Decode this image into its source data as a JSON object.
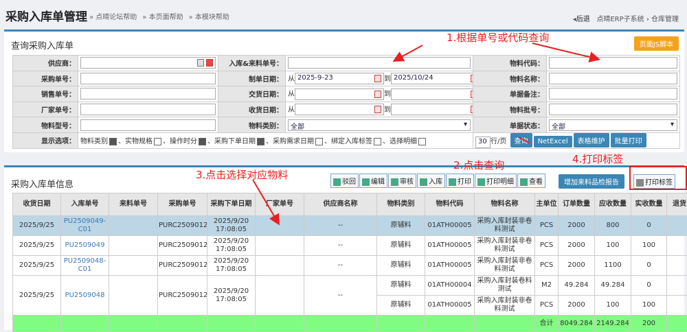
{
  "header": {
    "title": "采购入库单管理",
    "crumbs": [
      "» 点晴论坛帮助",
      "» 本页面帮助",
      "» 本模块帮助"
    ],
    "back": "后退",
    "system": "点晴ERP子系统",
    "sep": "›",
    "module": "仓库管理"
  },
  "query": {
    "title": "查询采购入库单",
    "js_button": "页面JS脚本",
    "labels": {
      "supplier": "供应商：",
      "in_no": "入库&来料单号：",
      "mat_code": "物料代码：",
      "po_no": "采购单号：",
      "make_date": "制单日期：",
      "mat_name": "物料名称：",
      "so_no": "销售单号：",
      "deliver_date": "交货日期：",
      "remark": "单据备注：",
      "vendor_no": "厂家单号：",
      "recv_date": "收货日期：",
      "batch": "物料批号：",
      "model": "物料型号：",
      "category": "物料类别：",
      "status": "单据状态：",
      "display": "显示选项："
    },
    "from": "从",
    "to": "到",
    "make_from": "2025-9-23",
    "make_to": "2025/10/24",
    "category_value": "全部",
    "status_value": "全部",
    "options": [
      {
        "label": "物料类别",
        "checked": true
      },
      {
        "label": "实物规格",
        "checked": false
      },
      {
        "label": "操作时分",
        "checked": true
      },
      {
        "label": "采购下单日期",
        "checked": true
      },
      {
        "label": "采购需求日期",
        "checked": false
      },
      {
        "label": "绑定入库标签",
        "checked": false
      },
      {
        "label": "选择明细",
        "checked": false
      }
    ],
    "rows_per_page": "30",
    "rows_unit": "行/页",
    "buttons": [
      "查询",
      "NetExcel",
      "表格维护",
      "批量打印"
    ]
  },
  "list": {
    "title": "采购入库单信息",
    "toolbar": [
      "驳回",
      "编辑",
      "审核",
      "入库",
      "打印",
      "打印明细",
      "查看"
    ],
    "quality_button": "增加来料品检报告",
    "print_label": "打印标签",
    "columns": [
      "收货日期",
      "入库单号",
      "来料单号",
      "采购单号",
      "采购下单日期",
      "厂家单号",
      "供应商名称",
      "物料类别",
      "物料代码",
      "物料名称",
      "主单位",
      "订单数量",
      "应收数量",
      "实收数量",
      "退货"
    ],
    "rows": [
      {
        "date": "2025/9/25",
        "in_no": "PU2509049-C01",
        "po": "PURC2509012",
        "po_date": "2025/9/20 17:08:05",
        "supplier": "--",
        "cat": "原辅料",
        "code": "01ATH00005",
        "name": "采购入库封装非卷料测试",
        "unit": "PCS",
        "order": "2000",
        "due": "800",
        "recv": "0",
        "selected": true
      },
      {
        "date": "2025/9/25",
        "in_no": "PU2509049",
        "po": "PURC2509012",
        "po_date": "2025/9/20 17:08:05",
        "supplier": "--",
        "cat": "原辅料",
        "code": "01ATH00005",
        "name": "采购入库封装非卷料测试",
        "unit": "PCS",
        "order": "2000",
        "due": "100",
        "recv": "100"
      },
      {
        "date": "2025/9/25",
        "in_no": "PU2509048-C01",
        "po": "PURC2509012",
        "po_date": "2025/9/20 17:08:05",
        "supplier": "--",
        "cat": "原辅料",
        "code": "01ATH00005",
        "name": "采购入库封装非卷料测试",
        "unit": "PCS",
        "order": "2000",
        "due": "1100",
        "recv": "0"
      },
      {
        "date": "2025/9/25",
        "in_no": "PU2509048",
        "po": "PURC2509012",
        "po_date": "2025/9/20 17:08:05",
        "supplier": "--",
        "cat": "原辅料",
        "code": "01ATH00004",
        "name": "采购入库封装卷料测试",
        "unit": "M2",
        "order": "49.284",
        "due": "49.284",
        "recv": "0"
      },
      {
        "cat": "原辅料",
        "code": "01ATH00005",
        "name": "采购入库封装非卷料测试",
        "unit": "PCS",
        "order": "2000",
        "due": "100",
        "recv": "100"
      }
    ],
    "total": {
      "label": "合计",
      "order": "8049.284",
      "due": "2149.284",
      "recv": "200"
    }
  },
  "annotations": [
    "1.根据单号或代码查询",
    "2.点击查询",
    "3.点击选择对应物料",
    "4.打印标签"
  ]
}
